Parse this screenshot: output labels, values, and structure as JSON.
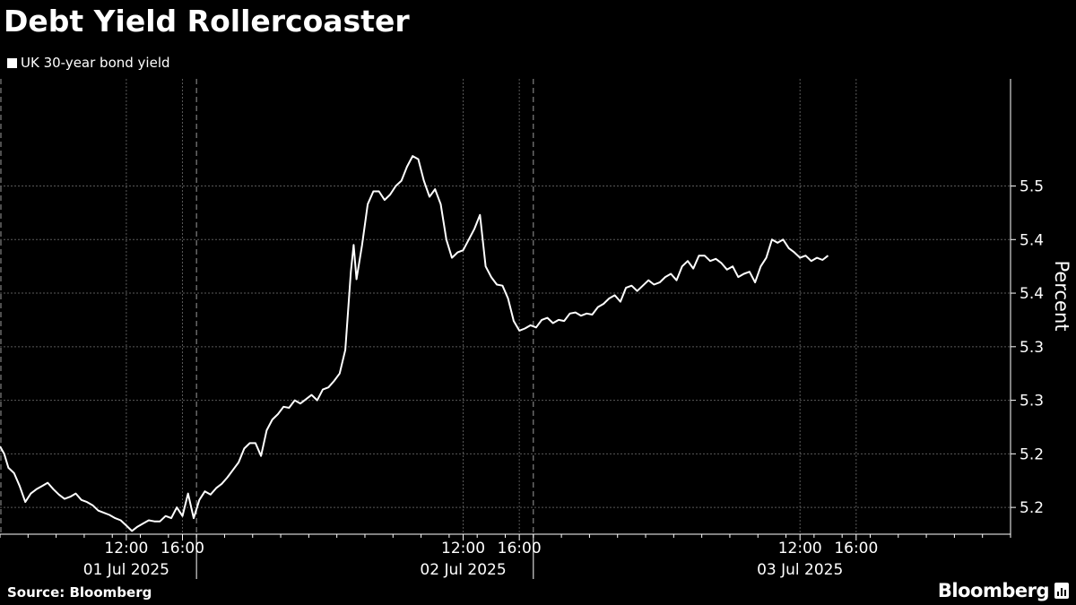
{
  "header": {
    "title": "Debt Yield Rollercoaster",
    "legend_label": "UK 30-year bond yield"
  },
  "footer": {
    "source": "Source: Bloomberg",
    "brand": "Bloomberg"
  },
  "colors": {
    "background": "#000000",
    "line": "#ffffff",
    "grid": "#5a5a5a"
  },
  "chart_data": {
    "type": "line",
    "title": "Debt Yield Rollercoaster",
    "ylabel": "Percent",
    "ylim": [
      5.125,
      5.55
    ],
    "yticks": [
      {
        "value": 5.15,
        "label": "5.2"
      },
      {
        "value": 5.2,
        "label": "5.2"
      },
      {
        "value": 5.25,
        "label": "5.3"
      },
      {
        "value": 5.3,
        "label": "5.3"
      },
      {
        "value": 5.35,
        "label": "5.4"
      },
      {
        "value": 5.4,
        "label": "5.4"
      },
      {
        "value": 5.45,
        "label": "5.5"
      }
    ],
    "y_axis_side": "right",
    "xlim_hours": [
      3.0,
      75.0
    ],
    "xticks": [
      {
        "hour": 12,
        "label": "12:00"
      },
      {
        "hour": 16,
        "label": "16:00"
      },
      {
        "hour": 36,
        "label": "12:00"
      },
      {
        "hour": 40,
        "label": "16:00"
      },
      {
        "hour": 60,
        "label": "12:00"
      },
      {
        "hour": 64,
        "label": "16:00"
      }
    ],
    "day_labels": [
      {
        "hour": 12,
        "label": "01 Jul 2025"
      },
      {
        "hour": 36,
        "label": "02 Jul 2025"
      },
      {
        "hour": 60,
        "label": "03 Jul 2025"
      }
    ],
    "day_separators_hours": [
      17,
      41
    ],
    "grid": true,
    "legend_position": "top-left",
    "series": [
      {
        "name": "UK 30-year bond yield",
        "points": [
          [
            3.0,
            5.207
          ],
          [
            3.3,
            5.2
          ],
          [
            3.6,
            5.187
          ],
          [
            4.0,
            5.182
          ],
          [
            4.4,
            5.17
          ],
          [
            4.8,
            5.155
          ],
          [
            5.2,
            5.163
          ],
          [
            5.6,
            5.167
          ],
          [
            6.0,
            5.17
          ],
          [
            6.4,
            5.173
          ],
          [
            6.8,
            5.167
          ],
          [
            7.2,
            5.162
          ],
          [
            7.6,
            5.158
          ],
          [
            8.0,
            5.16
          ],
          [
            8.4,
            5.163
          ],
          [
            8.8,
            5.157
          ],
          [
            9.2,
            5.155
          ],
          [
            9.6,
            5.152
          ],
          [
            10.0,
            5.147
          ],
          [
            10.4,
            5.145
          ],
          [
            10.8,
            5.143
          ],
          [
            11.2,
            5.14
          ],
          [
            11.6,
            5.138
          ],
          [
            12.0,
            5.133
          ],
          [
            12.4,
            5.128
          ],
          [
            12.8,
            5.132
          ],
          [
            13.2,
            5.135
          ],
          [
            13.6,
            5.138
          ],
          [
            14.0,
            5.137
          ],
          [
            14.4,
            5.137
          ],
          [
            14.8,
            5.142
          ],
          [
            15.2,
            5.14
          ],
          [
            15.6,
            5.15
          ],
          [
            16.0,
            5.142
          ],
          [
            16.4,
            5.163
          ],
          [
            16.8,
            5.14
          ],
          [
            17.2,
            5.157
          ],
          [
            17.6,
            5.165
          ],
          [
            18.0,
            5.162
          ],
          [
            18.4,
            5.168
          ],
          [
            18.8,
            5.172
          ],
          [
            19.2,
            5.178
          ],
          [
            19.6,
            5.185
          ],
          [
            20.0,
            5.192
          ],
          [
            20.4,
            5.205
          ],
          [
            20.8,
            5.21
          ],
          [
            21.2,
            5.21
          ],
          [
            21.6,
            5.198
          ],
          [
            22.0,
            5.222
          ],
          [
            22.4,
            5.232
          ],
          [
            22.8,
            5.237
          ],
          [
            23.2,
            5.244
          ],
          [
            23.6,
            5.243
          ],
          [
            24.0,
            5.25
          ],
          [
            24.4,
            5.247
          ],
          [
            24.8,
            5.251
          ],
          [
            25.2,
            5.255
          ],
          [
            25.6,
            5.25
          ],
          [
            26.0,
            5.26
          ],
          [
            26.4,
            5.262
          ],
          [
            26.8,
            5.268
          ],
          [
            27.2,
            5.275
          ],
          [
            27.6,
            5.297
          ],
          [
            28.0,
            5.37
          ],
          [
            28.2,
            5.395
          ],
          [
            28.4,
            5.363
          ],
          [
            28.8,
            5.395
          ],
          [
            29.2,
            5.433
          ],
          [
            29.6,
            5.445
          ],
          [
            30.0,
            5.445
          ],
          [
            30.4,
            5.437
          ],
          [
            30.8,
            5.442
          ],
          [
            31.2,
            5.45
          ],
          [
            31.6,
            5.455
          ],
          [
            32.0,
            5.468
          ],
          [
            32.4,
            5.478
          ],
          [
            32.8,
            5.475
          ],
          [
            33.2,
            5.455
          ],
          [
            33.6,
            5.44
          ],
          [
            34.0,
            5.447
          ],
          [
            34.4,
            5.433
          ],
          [
            34.8,
            5.4
          ],
          [
            35.2,
            5.383
          ],
          [
            35.6,
            5.388
          ],
          [
            36.0,
            5.39
          ],
          [
            36.4,
            5.4
          ],
          [
            36.8,
            5.41
          ],
          [
            37.2,
            5.423
          ],
          [
            37.6,
            5.375
          ],
          [
            38.0,
            5.365
          ],
          [
            38.4,
            5.358
          ],
          [
            38.8,
            5.357
          ],
          [
            39.2,
            5.345
          ],
          [
            39.6,
            5.324
          ],
          [
            40.0,
            5.315
          ],
          [
            40.4,
            5.317
          ],
          [
            40.8,
            5.32
          ],
          [
            41.2,
            5.318
          ],
          [
            41.6,
            5.325
          ],
          [
            42.0,
            5.327
          ],
          [
            42.4,
            5.322
          ],
          [
            42.8,
            5.325
          ],
          [
            43.2,
            5.324
          ],
          [
            43.6,
            5.331
          ],
          [
            44.0,
            5.332
          ],
          [
            44.4,
            5.329
          ],
          [
            44.8,
            5.331
          ],
          [
            45.2,
            5.33
          ],
          [
            45.6,
            5.337
          ],
          [
            46.0,
            5.34
          ],
          [
            46.4,
            5.345
          ],
          [
            46.8,
            5.348
          ],
          [
            47.2,
            5.342
          ],
          [
            47.6,
            5.355
          ],
          [
            48.0,
            5.357
          ],
          [
            48.4,
            5.352
          ],
          [
            48.8,
            5.357
          ],
          [
            49.2,
            5.362
          ],
          [
            49.6,
            5.358
          ],
          [
            50.0,
            5.36
          ],
          [
            50.4,
            5.365
          ],
          [
            50.8,
            5.368
          ],
          [
            51.2,
            5.362
          ],
          [
            51.6,
            5.375
          ],
          [
            52.0,
            5.38
          ],
          [
            52.4,
            5.373
          ],
          [
            52.8,
            5.385
          ],
          [
            53.2,
            5.385
          ],
          [
            53.6,
            5.38
          ],
          [
            54.0,
            5.382
          ],
          [
            54.4,
            5.378
          ],
          [
            54.8,
            5.372
          ],
          [
            55.2,
            5.375
          ],
          [
            55.6,
            5.365
          ],
          [
            56.0,
            5.368
          ],
          [
            56.4,
            5.37
          ],
          [
            56.8,
            5.36
          ],
          [
            57.2,
            5.375
          ],
          [
            57.6,
            5.383
          ],
          [
            58.0,
            5.4
          ],
          [
            58.4,
            5.397
          ],
          [
            58.8,
            5.4
          ],
          [
            59.2,
            5.392
          ],
          [
            59.6,
            5.388
          ],
          [
            60.0,
            5.383
          ],
          [
            60.4,
            5.385
          ],
          [
            60.8,
            5.38
          ],
          [
            61.2,
            5.383
          ],
          [
            61.6,
            5.381
          ],
          [
            62.0,
            5.385
          ]
        ]
      }
    ]
  }
}
